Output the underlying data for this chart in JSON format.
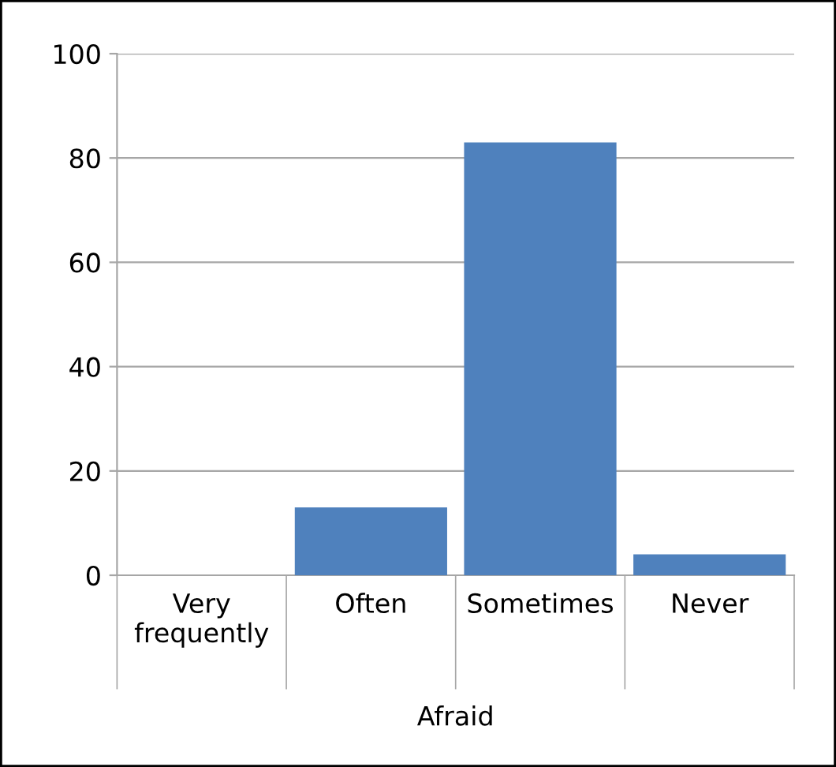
{
  "chart_data": {
    "type": "bar",
    "categories": [
      "Very\nfrequently",
      "Often",
      "Sometimes",
      "Never"
    ],
    "values": [
      0,
      13,
      83,
      4
    ],
    "color": "#4f81bd",
    "xlabel": "Afraid",
    "ylim": [
      0,
      100
    ],
    "yticks": [
      0,
      20,
      40,
      60,
      80,
      100
    ],
    "grid": "y"
  }
}
